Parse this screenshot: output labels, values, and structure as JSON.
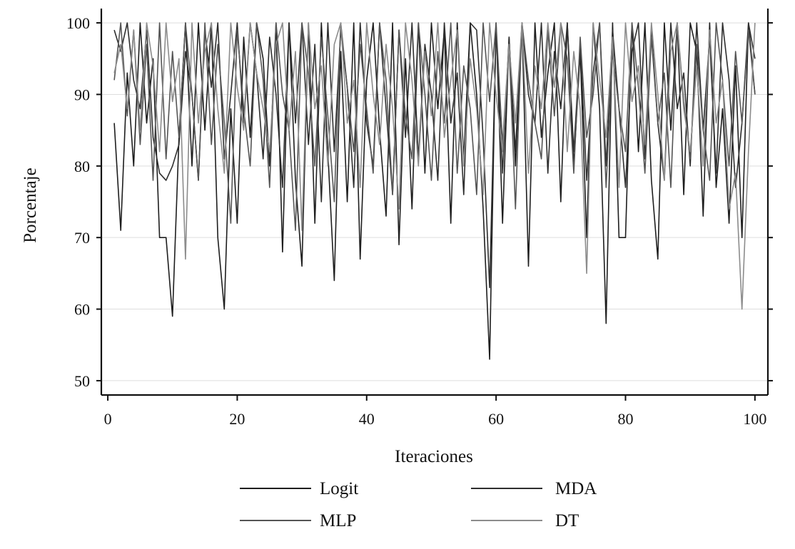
{
  "chart_data": {
    "type": "line",
    "title": "",
    "xlabel": "Iteraciones",
    "ylabel": "Porcentaje",
    "xlim": [
      -1,
      102
    ],
    "ylim": [
      48,
      102
    ],
    "xticks": [
      0,
      20,
      40,
      60,
      80,
      100
    ],
    "yticks": [
      50,
      60,
      70,
      80,
      90,
      100
    ],
    "grid": "horizontal",
    "legend_position": "bottom",
    "colors": {
      "Logit": "#1e1e1e",
      "MDA": "#2e2e2e",
      "MLP": "#555555",
      "DT": "#8c8c8c"
    },
    "x": [
      1,
      2,
      3,
      4,
      5,
      6,
      7,
      8,
      9,
      10,
      11,
      12,
      13,
      14,
      15,
      16,
      17,
      18,
      19,
      20,
      21,
      22,
      23,
      24,
      25,
      26,
      27,
      28,
      29,
      30,
      31,
      32,
      33,
      34,
      35,
      36,
      37,
      38,
      39,
      40,
      41,
      42,
      43,
      44,
      45,
      46,
      47,
      48,
      49,
      50,
      51,
      52,
      53,
      54,
      55,
      56,
      57,
      58,
      59,
      60,
      61,
      62,
      63,
      64,
      65,
      66,
      67,
      68,
      69,
      70,
      71,
      72,
      73,
      74,
      75,
      76,
      77,
      78,
      79,
      80,
      81,
      82,
      83,
      84,
      85,
      86,
      87,
      88,
      89,
      90,
      91,
      92,
      93,
      94,
      95,
      96,
      97,
      98,
      99,
      100
    ],
    "series": [
      {
        "name": "Logit",
        "values": [
          86,
          71,
          93,
          80,
          100,
          86,
          95,
          70,
          70,
          59,
          84,
          100,
          80,
          100,
          85,
          100,
          70,
          60,
          88,
          72,
          98,
          84,
          100,
          95,
          80,
          100,
          68,
          100,
          78,
          66,
          100,
          72,
          100,
          82,
          64,
          96,
          75,
          100,
          67,
          92,
          100,
          85,
          73,
          100,
          69,
          95,
          74,
          100,
          79,
          100,
          88,
          99,
          72,
          100,
          81,
          100,
          90,
          74,
          53,
          100,
          72,
          98,
          80,
          100,
          66,
          100,
          84,
          93,
          100,
          75,
          100,
          80,
          96,
          70,
          100,
          88,
          58,
          100,
          70,
          70,
          100,
          82,
          100,
          78,
          67,
          100,
          85,
          100,
          76,
          100,
          96,
          73,
          100,
          77,
          88,
          72,
          94,
          70,
          100,
          90
        ]
      },
      {
        "name": "MDA",
        "values": [
          99,
          96,
          100,
          92,
          88,
          99,
          84,
          79,
          78,
          80,
          83,
          96,
          90,
          78,
          99,
          91,
          100,
          81,
          90,
          100,
          86,
          100,
          93,
          81,
          98,
          90,
          77,
          100,
          86,
          100,
          83,
          97,
          75,
          100,
          82,
          99,
          91,
          77,
          100,
          86,
          80,
          100,
          88,
          76,
          99,
          84,
          100,
          81,
          97,
          90,
          78,
          100,
          86,
          93,
          76,
          100,
          99,
          84,
          63,
          99,
          79,
          98,
          82,
          100,
          90,
          86,
          100,
          79,
          96,
          88,
          100,
          82,
          97,
          78,
          93,
          100,
          80,
          99,
          88,
          77,
          96,
          100,
          81,
          99,
          86,
          78,
          100,
          88,
          93,
          80,
          100,
          85,
          98,
          79,
          100,
          92,
          77,
          86,
          100,
          95
        ]
      },
      {
        "name": "MLP",
        "values": [
          92,
          100,
          87,
          99,
          83,
          97,
          78,
          100,
          81,
          96,
          84,
          100,
          90,
          78,
          100,
          83,
          97,
          86,
          72,
          99,
          88,
          80,
          100,
          92,
          77,
          100,
          90,
          85,
          71,
          100,
          93,
          80,
          98,
          87,
          75,
          100,
          91,
          82,
          97,
          88,
          79,
          100,
          92,
          76,
          99,
          87,
          81,
          100,
          90,
          78,
          96,
          86,
          100,
          79,
          94,
          88,
          76,
          100,
          89,
          100,
          83,
          97,
          74,
          100,
          92,
          86,
          81,
          99,
          87,
          100,
          95,
          79,
          98,
          84,
          90,
          100,
          77,
          96,
          88,
          82,
          100,
          91,
          79,
          98,
          86,
          93,
          77,
          100,
          89,
          81,
          97,
          85,
          78,
          100,
          92,
          80,
          96,
          86,
          99,
          90
        ]
      },
      {
        "name": "DT",
        "values": [
          93,
          97,
          88,
          99,
          85,
          100,
          94,
          82,
          100,
          89,
          95,
          67,
          100,
          86,
          96,
          100,
          88,
          79,
          100,
          91,
          85,
          100,
          93,
          88,
          82,
          97,
          100,
          85,
          96,
          71,
          100,
          88,
          94,
          80,
          97,
          100,
          86,
          92,
          77,
          100,
          90,
          83,
          97,
          88,
          74,
          100,
          92,
          80,
          96,
          87,
          100,
          84,
          92,
          99,
          80,
          95,
          88,
          76,
          100,
          90,
          82,
          97,
          86,
          100,
          79,
          94,
          88,
          100,
          91,
          100,
          82,
          96,
          88,
          65,
          100,
          92,
          84,
          98,
          77,
          100,
          89,
          94,
          83,
          100,
          90,
          78,
          96,
          100,
          88,
          82,
          94,
          80,
          99,
          86,
          92,
          74,
          79,
          60,
          82,
          100
        ]
      }
    ]
  }
}
